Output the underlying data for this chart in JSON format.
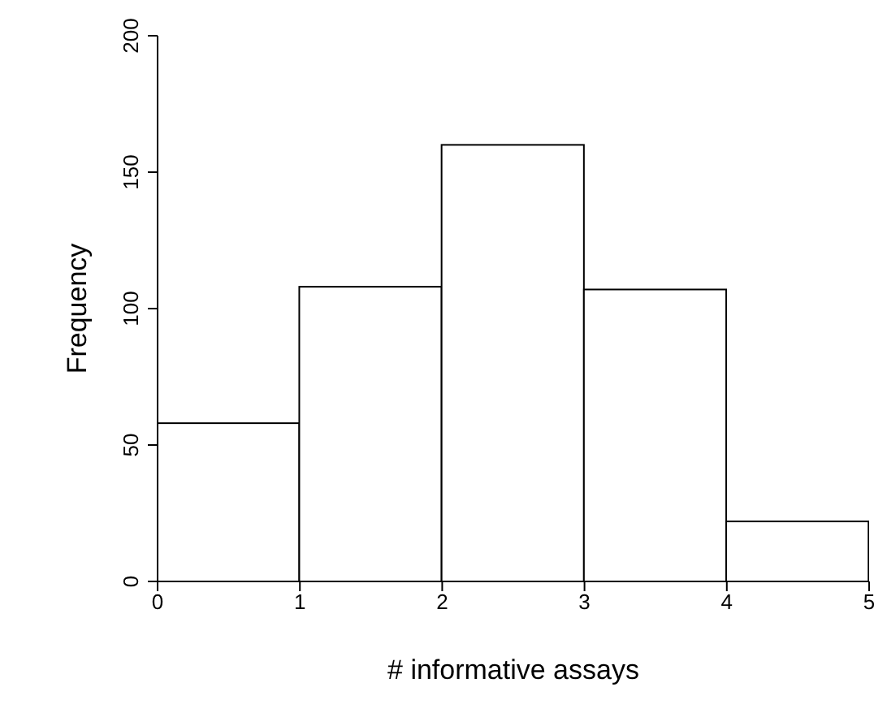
{
  "chart_data": {
    "type": "histogram",
    "xlabel": "# informative assays",
    "ylabel": "Frequency",
    "bins": [
      0,
      1,
      2,
      3,
      4,
      5
    ],
    "values": [
      58,
      108,
      160,
      107,
      22
    ],
    "color": "#ffffff",
    "xlim": [
      0,
      5
    ],
    "xticks": [
      0,
      1,
      2,
      3,
      4,
      5
    ],
    "ylim": [
      0,
      200
    ],
    "yticks": [
      0,
      50,
      100,
      150,
      200
    ]
  }
}
